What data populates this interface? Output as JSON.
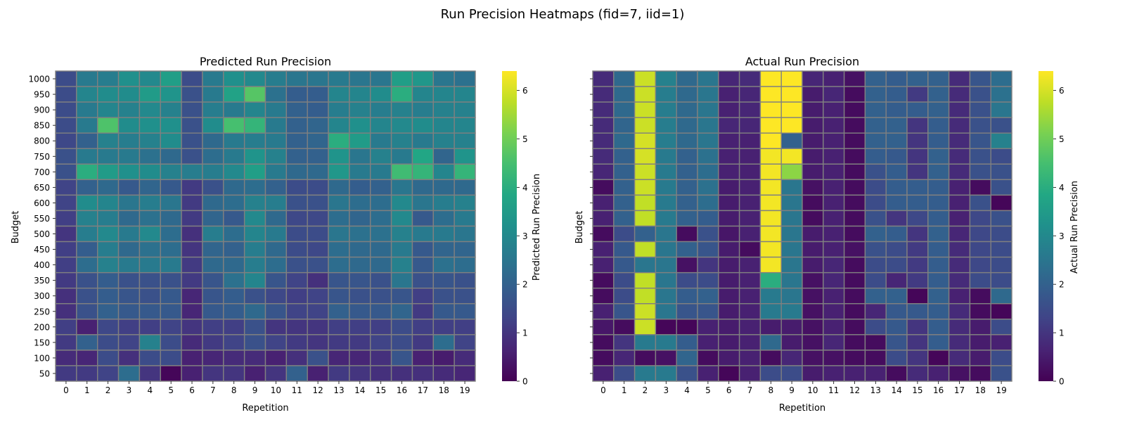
{
  "figure": {
    "title": "Run Precision Heatmaps (fid=7, iid=1)"
  },
  "colormap": "viridis",
  "cell_border_color": "#808080",
  "chart_data": [
    {
      "type": "heatmap",
      "title": "Predicted Run Precision",
      "xlabel": "Repetition",
      "ylabel": "Budget",
      "colorbar_label": "Predicted Run Precision",
      "vmin": 0,
      "vmax": 6.4,
      "colorbar_ticks": [
        0,
        1,
        2,
        3,
        4,
        5,
        6
      ],
      "x": [
        0,
        1,
        2,
        3,
        4,
        5,
        6,
        7,
        8,
        9,
        10,
        11,
        12,
        13,
        14,
        15,
        16,
        17,
        18,
        19
      ],
      "y": [
        1000,
        950,
        900,
        850,
        800,
        750,
        700,
        650,
        600,
        550,
        500,
        450,
        400,
        350,
        300,
        250,
        200,
        150,
        100,
        50
      ],
      "values": [
        [
          1.5,
          2.6,
          2.7,
          3.2,
          3.0,
          3.6,
          1.5,
          2.6,
          3.2,
          3.0,
          2.7,
          2.5,
          2.5,
          2.6,
          2.5,
          2.5,
          3.6,
          3.4,
          2.5,
          2.4
        ],
        [
          1.5,
          2.9,
          3.1,
          3.1,
          3.5,
          3.3,
          1.6,
          2.6,
          3.7,
          4.7,
          2.4,
          1.9,
          1.9,
          2.9,
          2.9,
          3.1,
          4.0,
          2.9,
          2.9,
          2.9
        ],
        [
          1.5,
          2.6,
          2.9,
          2.8,
          3.0,
          2.8,
          1.6,
          2.7,
          2.6,
          2.9,
          2.6,
          2.0,
          1.9,
          2.7,
          2.8,
          2.7,
          2.8,
          2.7,
          2.8,
          2.8
        ],
        [
          1.5,
          2.6,
          4.6,
          3.1,
          3.2,
          3.2,
          1.6,
          3.1,
          4.5,
          4.2,
          2.6,
          2.0,
          2.1,
          2.9,
          3.2,
          2.9,
          3.0,
          3.1,
          2.9,
          2.9
        ],
        [
          1.4,
          2.0,
          2.8,
          2.7,
          2.8,
          3.1,
          1.6,
          2.2,
          2.6,
          2.7,
          2.6,
          2.0,
          2.1,
          4.0,
          3.5,
          2.6,
          2.8,
          2.6,
          2.8,
          2.8
        ],
        [
          1.6,
          2.6,
          2.6,
          2.6,
          2.4,
          2.2,
          1.6,
          2.3,
          2.6,
          3.3,
          2.8,
          2.0,
          2.0,
          3.3,
          2.5,
          2.8,
          2.6,
          3.8,
          2.1,
          3.3
        ],
        [
          1.6,
          4.0,
          3.5,
          3.2,
          3.1,
          2.8,
          2.7,
          2.7,
          3.0,
          3.6,
          2.6,
          2.2,
          2.2,
          3.4,
          2.6,
          2.6,
          4.4,
          4.2,
          2.9,
          4.2
        ],
        [
          1.3,
          2.0,
          2.2,
          1.8,
          2.1,
          1.8,
          1.1,
          1.6,
          2.2,
          2.3,
          2.0,
          1.5,
          1.5,
          2.2,
          1.9,
          2.0,
          2.5,
          2.2,
          2.2,
          2.2
        ],
        [
          1.3,
          3.1,
          2.9,
          2.5,
          2.7,
          2.5,
          1.1,
          2.2,
          2.3,
          2.8,
          2.7,
          1.6,
          1.6,
          2.5,
          2.3,
          2.3,
          3.0,
          2.5,
          2.7,
          2.8
        ],
        [
          1.2,
          2.8,
          2.7,
          2.2,
          2.4,
          2.2,
          1.1,
          2.1,
          1.8,
          3.0,
          2.2,
          1.4,
          1.4,
          2.3,
          2.1,
          2.3,
          3.0,
          1.8,
          2.3,
          2.6
        ],
        [
          1.0,
          2.7,
          3.0,
          2.6,
          3.0,
          2.3,
          0.9,
          2.7,
          2.3,
          2.9,
          2.6,
          1.5,
          1.5,
          2.5,
          2.4,
          2.4,
          2.8,
          2.6,
          2.6,
          2.5
        ],
        [
          1.2,
          1.9,
          2.7,
          2.2,
          2.4,
          2.3,
          1.0,
          2.1,
          2.0,
          2.7,
          2.2,
          1.5,
          1.4,
          2.3,
          2.2,
          2.2,
          2.6,
          1.8,
          2.1,
          2.1
        ],
        [
          1.2,
          2.3,
          2.8,
          2.6,
          2.6,
          2.6,
          1.1,
          2.2,
          2.2,
          2.7,
          2.3,
          1.6,
          1.6,
          2.3,
          2.2,
          2.2,
          2.8,
          1.8,
          2.4,
          2.3
        ],
        [
          1.1,
          1.6,
          1.9,
          1.6,
          1.6,
          1.6,
          1.1,
          1.7,
          2.4,
          2.9,
          1.7,
          1.3,
          0.9,
          1.7,
          1.7,
          1.6,
          2.5,
          1.6,
          1.7,
          1.6
        ],
        [
          0.9,
          1.6,
          1.9,
          1.7,
          1.6,
          1.8,
          0.7,
          1.7,
          1.9,
          1.6,
          1.4,
          1.2,
          1.3,
          1.7,
          1.6,
          1.6,
          1.7,
          1.2,
          1.6,
          1.6
        ],
        [
          0.9,
          1.6,
          2.0,
          1.8,
          1.8,
          1.8,
          0.7,
          1.8,
          1.9,
          2.2,
          1.7,
          1.3,
          1.3,
          2.0,
          1.8,
          1.8,
          2.1,
          1.1,
          1.8,
          1.8
        ],
        [
          1.2,
          0.6,
          1.4,
          1.2,
          1.2,
          1.3,
          1.0,
          1.2,
          1.2,
          1.6,
          1.0,
          1.0,
          1.0,
          1.2,
          1.2,
          1.2,
          1.5,
          1.2,
          1.2,
          1.2
        ],
        [
          1.1,
          2.0,
          1.5,
          1.3,
          2.8,
          1.5,
          0.8,
          1.1,
          1.3,
          1.6,
          1.3,
          1.1,
          1.0,
          1.1,
          1.1,
          1.3,
          1.5,
          1.1,
          2.3,
          1.3
        ],
        [
          0.8,
          0.7,
          1.5,
          0.9,
          1.5,
          1.5,
          0.6,
          0.7,
          0.8,
          0.8,
          0.6,
          0.9,
          1.6,
          0.7,
          0.7,
          0.9,
          1.7,
          0.6,
          0.5,
          0.8
        ],
        [
          1.1,
          1.1,
          1.3,
          2.3,
          1.0,
          0.1,
          0.6,
          1.0,
          1.0,
          0.6,
          1.0,
          2.0,
          0.6,
          1.1,
          1.0,
          0.9,
          0.9,
          0.9,
          0.8,
          0.7
        ]
      ]
    },
    {
      "type": "heatmap",
      "title": "Actual Run Precision",
      "xlabel": "Repetition",
      "ylabel": "Budget",
      "colorbar_label": "Actual Run Precision",
      "vmin": 0,
      "vmax": 6.4,
      "colorbar_ticks": [
        0,
        1,
        2,
        3,
        4,
        5,
        6
      ],
      "x": [
        0,
        1,
        2,
        3,
        4,
        5,
        6,
        7,
        8,
        9,
        10,
        11,
        12,
        13,
        14,
        15,
        16,
        17,
        18,
        19
      ],
      "y": [
        1000,
        950,
        900,
        850,
        800,
        750,
        700,
        650,
        600,
        550,
        500,
        450,
        400,
        350,
        300,
        250,
        200,
        150,
        100,
        50
      ],
      "values": [
        [
          0.8,
          2.2,
          5.9,
          2.8,
          2.2,
          2.5,
          0.7,
          0.8,
          6.4,
          6.4,
          0.7,
          0.6,
          0.3,
          2.0,
          1.9,
          2.0,
          2.0,
          0.8,
          1.7,
          2.3
        ],
        [
          0.8,
          2.2,
          5.9,
          2.7,
          2.2,
          2.5,
          0.6,
          0.7,
          6.4,
          6.4,
          0.5,
          0.7,
          0.2,
          2.0,
          1.9,
          1.1,
          2.0,
          0.8,
          1.6,
          2.4
        ],
        [
          0.8,
          2.2,
          5.9,
          2.7,
          2.2,
          2.5,
          0.6,
          0.7,
          6.4,
          6.4,
          0.5,
          0.6,
          0.2,
          2.0,
          1.9,
          1.9,
          2.0,
          0.8,
          1.6,
          2.5
        ],
        [
          0.8,
          2.1,
          5.9,
          2.7,
          2.2,
          2.5,
          0.7,
          0.7,
          6.4,
          6.4,
          0.5,
          0.6,
          0.2,
          2.0,
          2.0,
          1.0,
          1.9,
          0.8,
          1.6,
          1.6
        ],
        [
          0.8,
          2.2,
          6.0,
          2.7,
          2.2,
          2.5,
          0.6,
          0.6,
          6.4,
          2.0,
          0.5,
          0.6,
          0.2,
          2.0,
          2.0,
          1.0,
          1.9,
          0.8,
          1.7,
          2.8
        ],
        [
          0.8,
          2.0,
          6.0,
          2.6,
          2.0,
          2.4,
          0.6,
          0.6,
          6.3,
          6.3,
          0.5,
          0.6,
          0.2,
          1.9,
          1.8,
          1.0,
          2.0,
          0.8,
          1.6,
          1.5
        ],
        [
          0.7,
          2.0,
          5.9,
          2.6,
          2.0,
          2.3,
          0.6,
          0.6,
          6.3,
          5.3,
          0.5,
          0.6,
          0.2,
          1.6,
          1.9,
          1.0,
          2.0,
          0.8,
          1.6,
          1.6
        ],
        [
          0.2,
          2.0,
          5.9,
          2.6,
          2.0,
          2.4,
          0.5,
          0.6,
          6.3,
          2.5,
          0.3,
          0.6,
          0.2,
          1.5,
          1.9,
          1.9,
          1.9,
          0.6,
          0.2,
          1.6
        ],
        [
          0.6,
          2.0,
          5.8,
          2.6,
          2.0,
          2.3,
          0.5,
          0.6,
          6.3,
          2.5,
          0.2,
          0.6,
          0.2,
          1.5,
          1.9,
          1.9,
          1.9,
          0.6,
          1.6,
          0.1
        ],
        [
          0.6,
          2.0,
          5.8,
          2.6,
          2.0,
          1.9,
          0.5,
          0.6,
          6.3,
          2.5,
          0.2,
          0.6,
          0.2,
          1.6,
          1.0,
          1.4,
          1.9,
          0.6,
          1.4,
          1.6
        ],
        [
          0.2,
          1.5,
          2.0,
          2.5,
          0.2,
          1.6,
          0.4,
          0.6,
          6.3,
          2.5,
          0.5,
          0.6,
          0.2,
          2.0,
          1.9,
          1.0,
          2.0,
          0.7,
          1.4,
          1.5
        ],
        [
          0.6,
          1.8,
          5.8,
          2.5,
          2.0,
          1.7,
          0.5,
          0.2,
          6.3,
          2.5,
          0.5,
          0.6,
          0.3,
          1.6,
          1.5,
          1.1,
          1.9,
          0.8,
          1.4,
          1.5
        ],
        [
          0.6,
          1.8,
          2.5,
          2.5,
          0.3,
          1.0,
          0.5,
          0.6,
          6.3,
          2.5,
          0.5,
          0.7,
          0.2,
          1.5,
          1.5,
          1.1,
          1.9,
          0.8,
          1.4,
          1.5
        ],
        [
          0.2,
          1.5,
          5.8,
          2.5,
          1.5,
          1.5,
          0.5,
          0.6,
          4.0,
          2.5,
          0.3,
          0.7,
          0.2,
          1.5,
          0.7,
          1.1,
          1.9,
          0.8,
          1.5,
          1.5
        ],
        [
          0.2,
          1.5,
          5.8,
          2.5,
          1.9,
          2.0,
          0.5,
          0.6,
          2.6,
          2.5,
          0.3,
          0.6,
          0.2,
          2.0,
          2.0,
          0.1,
          2.0,
          0.6,
          0.2,
          2.2
        ],
        [
          0.6,
          1.7,
          5.9,
          2.5,
          1.7,
          1.7,
          0.5,
          0.6,
          2.6,
          2.6,
          0.3,
          0.6,
          0.2,
          0.7,
          1.8,
          1.8,
          1.9,
          0.8,
          0.2,
          0.1
        ],
        [
          0.4,
          0.2,
          5.9,
          0.1,
          0.1,
          0.6,
          0.5,
          0.6,
          0.5,
          0.5,
          0.3,
          0.6,
          0.2,
          1.5,
          1.8,
          1.0,
          1.9,
          0.8,
          0.5,
          1.5
        ],
        [
          0.2,
          1.0,
          2.6,
          2.6,
          1.9,
          0.6,
          0.5,
          0.6,
          2.2,
          0.5,
          0.3,
          0.7,
          0.2,
          0.2,
          1.7,
          1.0,
          1.9,
          0.8,
          0.5,
          0.6
        ],
        [
          0.2,
          0.7,
          0.2,
          0.3,
          2.1,
          0.2,
          0.5,
          0.6,
          0.2,
          0.7,
          0.3,
          0.3,
          0.2,
          0.2,
          1.5,
          1.0,
          0.1,
          0.8,
          0.5,
          1.5
        ],
        [
          0.6,
          1.5,
          2.6,
          2.6,
          1.6,
          0.6,
          0.1,
          0.6,
          1.5,
          1.5,
          0.5,
          0.6,
          0.6,
          0.6,
          0.2,
          0.8,
          0.6,
          0.3,
          0.2,
          1.6
        ]
      ]
    }
  ]
}
